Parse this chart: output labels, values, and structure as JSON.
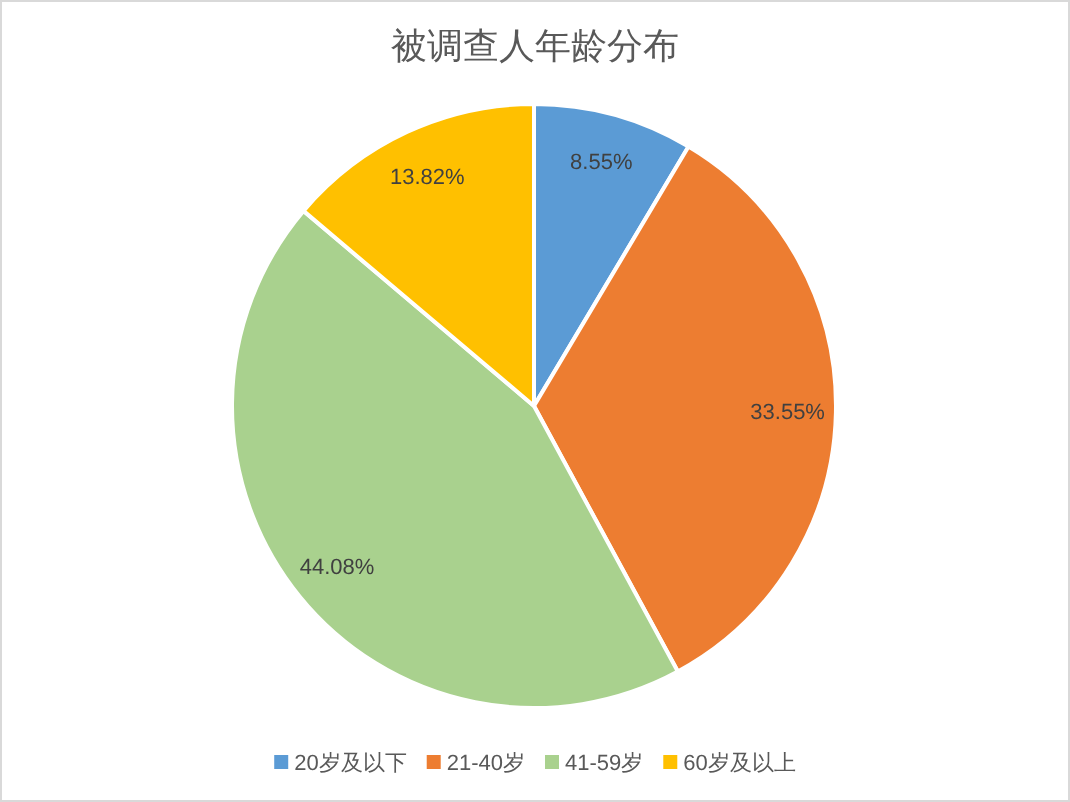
{
  "chart_data": {
    "type": "pie",
    "title": "被调查人年龄分布",
    "categories": [
      "20岁及以下",
      "21-40岁",
      "41-59岁",
      "60岁及以上"
    ],
    "values": [
      8.55,
      33.55,
      44.08,
      13.82
    ],
    "colors": [
      "#5b9bd5",
      "#ed7d31",
      "#a9d18e",
      "#ffc000"
    ],
    "value_labels": [
      "8.55%",
      "33.55%",
      "44.08%",
      "13.82%"
    ],
    "legend": "bottom"
  }
}
